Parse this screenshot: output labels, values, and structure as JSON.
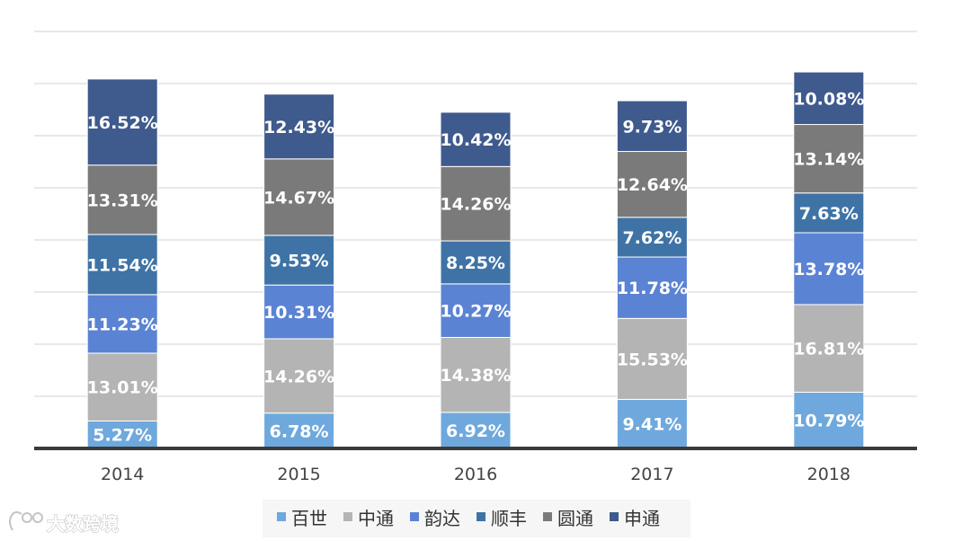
{
  "chart_data": {
    "type": "bar",
    "stacked": true,
    "categories": [
      "2014",
      "2015",
      "2016",
      "2017",
      "2018"
    ],
    "series": [
      {
        "name": "百世",
        "color": "#6fa8dc",
        "values": [
          5.27,
          6.78,
          6.92,
          9.41,
          10.79
        ],
        "labels": [
          "5.27%",
          "6.78%",
          "6.92%",
          "9.41%",
          "10.79%"
        ]
      },
      {
        "name": "中通",
        "color": "#b4b4b4",
        "values": [
          13.01,
          14.26,
          14.38,
          15.53,
          16.81
        ],
        "labels": [
          "13.01%",
          "14.26%",
          "14.38%",
          "15.53%",
          "16.81%"
        ]
      },
      {
        "name": "韵达",
        "color": "#5b83d3",
        "values": [
          11.23,
          10.31,
          10.27,
          11.78,
          13.78
        ],
        "labels": [
          "11.23%",
          "10.31%",
          "10.27%",
          "11.78%",
          "13.78%"
        ]
      },
      {
        "name": "顺丰",
        "color": "#3f73a6",
        "values": [
          11.54,
          9.53,
          8.25,
          7.62,
          7.63
        ],
        "labels": [
          "11.54%",
          "9.53%",
          "8.25%",
          "7.62%",
          "7.63%"
        ]
      },
      {
        "name": "圆通",
        "color": "#7a7a7a",
        "values": [
          13.31,
          14.67,
          14.26,
          12.64,
          13.14
        ],
        "labels": [
          "13.31%",
          "14.67%",
          "14.26%",
          "12.64%",
          "13.14%"
        ]
      },
      {
        "name": "申通",
        "color": "#3f5a8c",
        "values": [
          16.52,
          12.43,
          10.42,
          9.73,
          10.08
        ],
        "labels": [
          "16.52%",
          "12.43%",
          "10.42%",
          "9.73%",
          "10.08%"
        ]
      }
    ],
    "ylim": [
      0,
      80
    ],
    "grid": true,
    "legend": "bottom"
  },
  "watermark": {
    "text": "大数跨境"
  }
}
